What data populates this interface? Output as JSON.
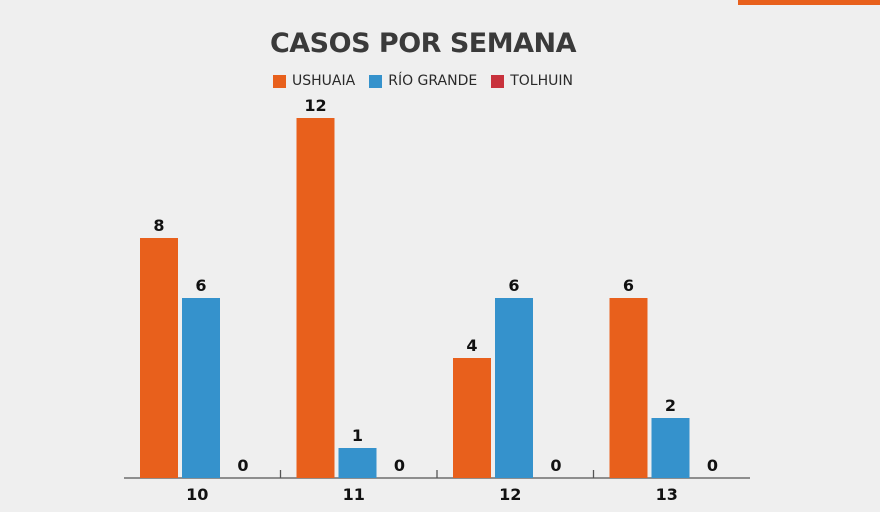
{
  "chart_data": {
    "type": "bar",
    "title": "CASOS POR SEMANA",
    "categories": [
      "10",
      "11",
      "12",
      "13"
    ],
    "series": [
      {
        "name": "USHUAIA",
        "color": "#e8601c",
        "values": [
          8,
          12,
          4,
          6
        ]
      },
      {
        "name": "RÍO GRANDE",
        "color": "#3592cc",
        "values": [
          6,
          1,
          6,
          2
        ]
      },
      {
        "name": "TOLHUIN",
        "color": "#c8323c",
        "values": [
          0,
          0,
          0,
          0
        ]
      }
    ],
    "xlabel": "",
    "ylabel": "",
    "ylim": [
      0,
      12
    ],
    "grid": false,
    "legend_position": "top"
  },
  "colors": {
    "accent": "#e8601c",
    "axis": "#555555"
  }
}
